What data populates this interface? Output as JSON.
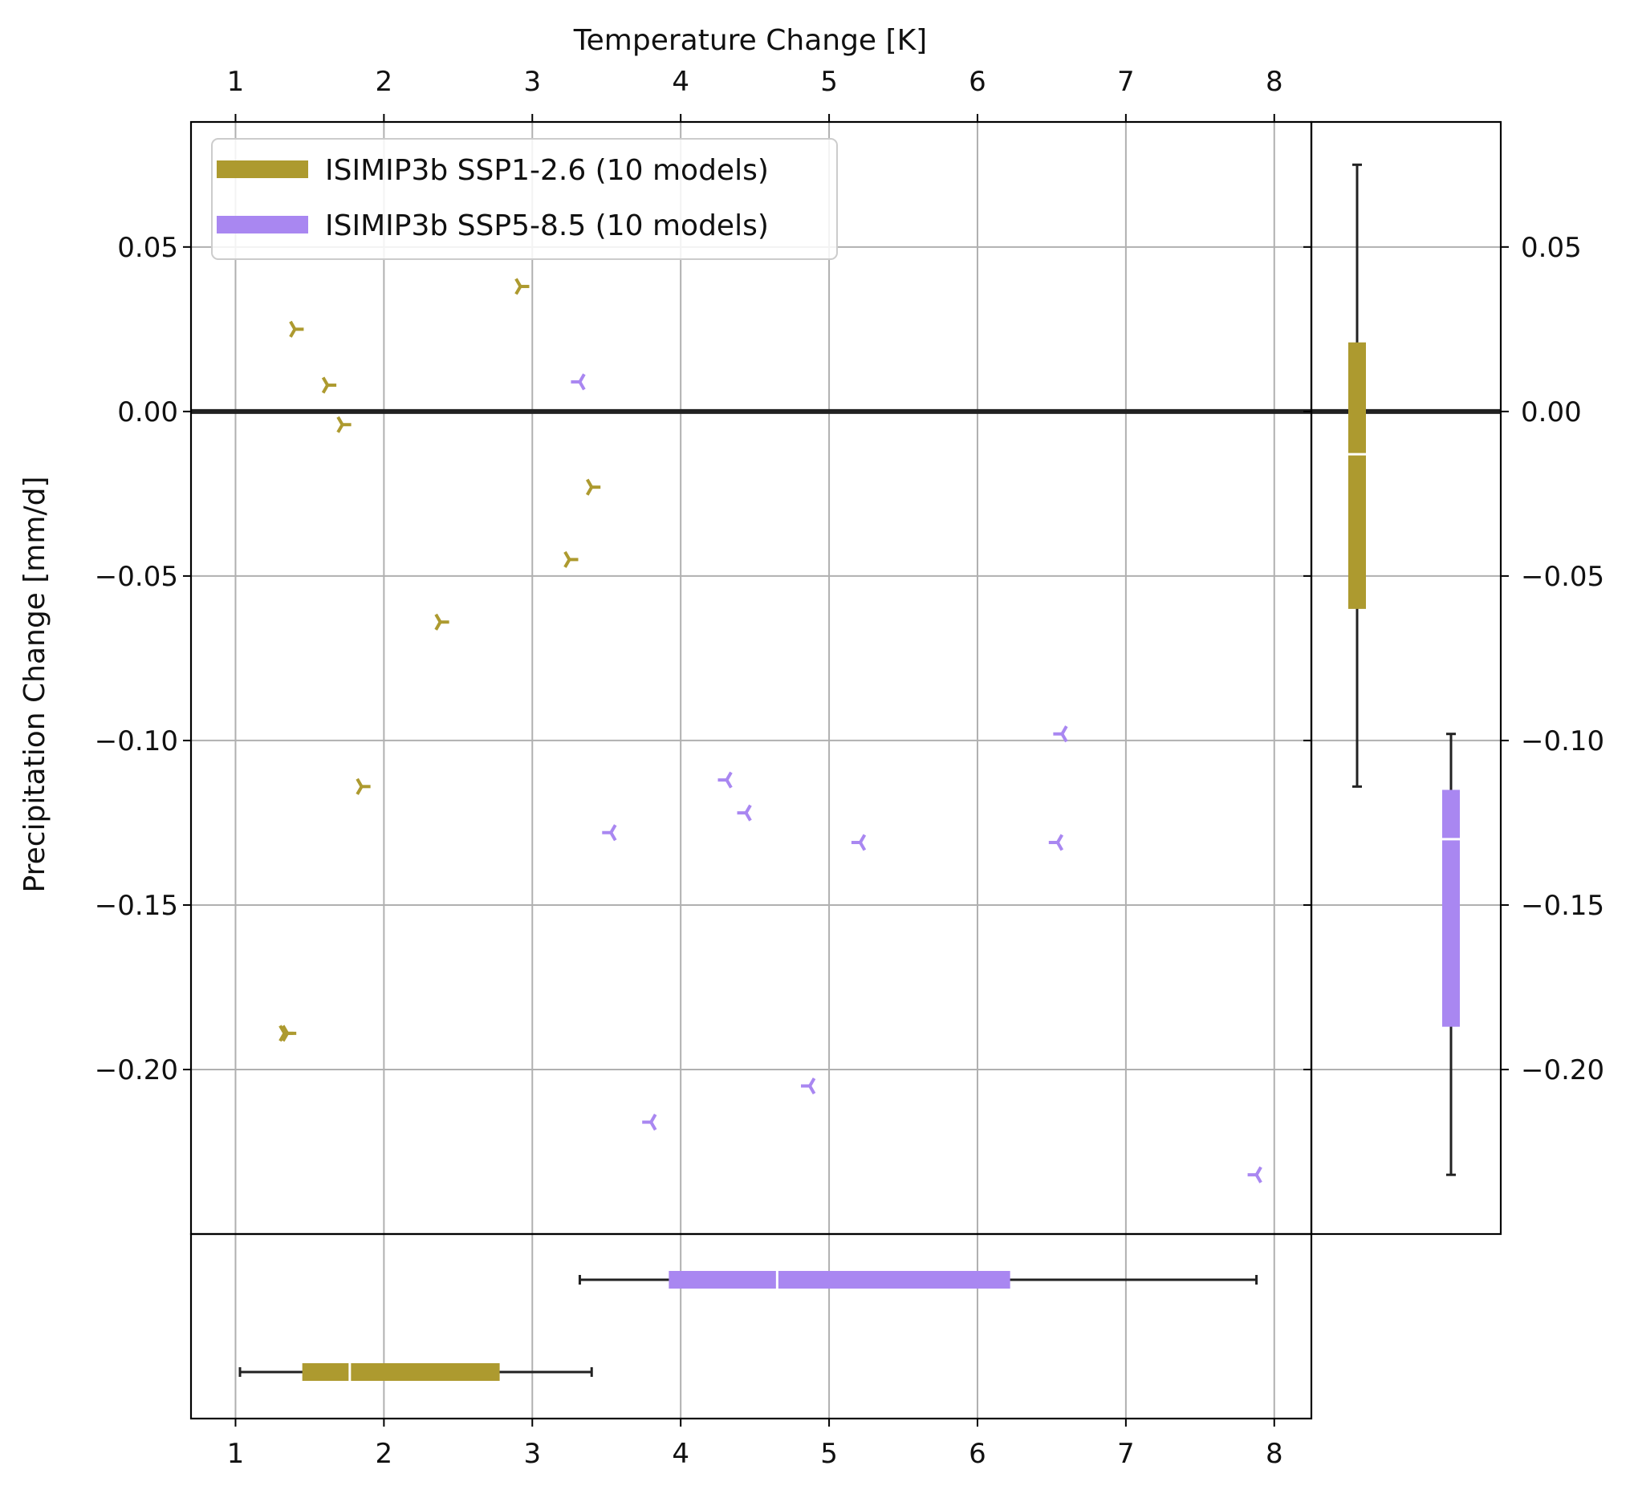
{
  "chart_data": {
    "type": "scatter",
    "title": "",
    "xlabel": "Temperature Change [K]",
    "ylabel": "Precipitation Change [mm/d]",
    "xlim": [
      0.7,
      8.25
    ],
    "ylim": [
      -0.25,
      0.088
    ],
    "x_ticks": [
      1,
      2,
      3,
      4,
      5,
      6,
      7,
      8
    ],
    "x_tick_labels": [
      "1",
      "2",
      "3",
      "4",
      "5",
      "6",
      "7",
      "8"
    ],
    "y_ticks": [
      0.05,
      0.0,
      -0.05,
      -0.1,
      -0.15,
      -0.2
    ],
    "y_tick_labels": [
      "0.05",
      "0.00",
      "−0.05",
      "−0.10",
      "−0.15",
      "−0.20"
    ],
    "grid": true,
    "reference_line_y": 0,
    "legend_position": "top-left",
    "series": [
      {
        "name": "ISIMIP3b SSP1-2.6 (10 models)",
        "color": "#ad9a2f",
        "marker": "tri-right",
        "points": [
          [
            1.4,
            0.025
          ],
          [
            1.62,
            0.008
          ],
          [
            1.72,
            -0.004
          ],
          [
            2.92,
            0.038
          ],
          [
            3.4,
            -0.023
          ],
          [
            3.25,
            -0.045
          ],
          [
            2.38,
            -0.064
          ],
          [
            1.85,
            -0.114
          ],
          [
            1.33,
            -0.189
          ],
          [
            1.35,
            -0.189
          ]
        ],
        "x_box": {
          "whisker_low": 1.03,
          "q1": 1.45,
          "median": 1.77,
          "q3": 2.78,
          "whisker_high": 3.4
        },
        "y_box": {
          "whisker_low": -0.114,
          "q1": -0.06,
          "median": -0.013,
          "q3": 0.021,
          "whisker_high": 0.075
        }
      },
      {
        "name": "ISIMIP3b SSP5-8.5 (10 models)",
        "color": "#a987f1",
        "marker": "tri-left",
        "points": [
          [
            3.32,
            0.009
          ],
          [
            6.57,
            -0.098
          ],
          [
            4.31,
            -0.112
          ],
          [
            4.44,
            -0.122
          ],
          [
            3.53,
            -0.128
          ],
          [
            5.21,
            -0.131
          ],
          [
            6.54,
            -0.131
          ],
          [
            3.8,
            -0.216
          ],
          [
            4.87,
            -0.205
          ],
          [
            7.88,
            -0.232
          ]
        ],
        "x_box": {
          "whisker_low": 3.32,
          "q1": 3.92,
          "median": 4.65,
          "q3": 6.22,
          "whisker_high": 7.88
        },
        "y_box": {
          "whisker_low": -0.232,
          "q1": -0.187,
          "median": -0.13,
          "q3": -0.115,
          "whisker_high": -0.098
        }
      }
    ]
  }
}
